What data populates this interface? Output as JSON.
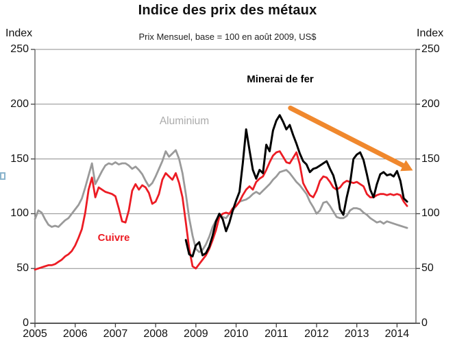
{
  "header": {
    "title": "Indice des prix des métaux",
    "subtitle": "Prix Mensuel, base = 100 en août 2009, US$",
    "axis_label_left": "Index",
    "axis_label_right": "Index"
  },
  "chart_data": {
    "type": "line",
    "title": "Indice des prix des métaux",
    "subtitle": "Prix Mensuel, base = 100 en août 2009, US$",
    "ylabel": "Index",
    "xlabel": "",
    "ylim": [
      0,
      250
    ],
    "xlim": [
      2005,
      2014.47
    ],
    "grid": true,
    "legend_position": "labels-on-chart",
    "y_ticks": [
      0,
      50,
      100,
      150,
      200,
      250
    ],
    "x_ticks": [
      "2005",
      "2006",
      "2007",
      "2008",
      "2009",
      "2010",
      "2011",
      "2012",
      "2013",
      "2014"
    ],
    "frequency": "monthly",
    "series": [
      {
        "name": "Minerai de fer",
        "color": "#000000",
        "start_year": 2008,
        "start_month": 10,
        "values": [
          76,
          63,
          61,
          71,
          74,
          62,
          64,
          70,
          80,
          93,
          100,
          95,
          84,
          92,
          103,
          112,
          120,
          146,
          177,
          158,
          140,
          132,
          140,
          137,
          163,
          157,
          176,
          185,
          190,
          184,
          177,
          181,
          172,
          164,
          155,
          148,
          145,
          138,
          141,
          142,
          144,
          146,
          148,
          141,
          135,
          124,
          104,
          99,
          115,
          128,
          150,
          154,
          156,
          149,
          136,
          122,
          115,
          127,
          136,
          138,
          135,
          136,
          134,
          139,
          130,
          114,
          111
        ]
      },
      {
        "name": "Cuivre",
        "color": "#ec1c24",
        "start_year": 2005,
        "start_month": 1,
        "values": [
          49,
          50,
          51,
          52,
          53,
          53,
          54,
          56,
          58,
          61,
          63,
          66,
          71,
          78,
          86,
          101,
          122,
          133,
          115,
          124,
          122,
          120,
          119,
          118,
          116,
          105,
          93,
          92,
          103,
          121,
          127,
          122,
          126,
          124,
          119,
          109,
          111,
          118,
          131,
          137,
          134,
          131,
          137,
          128,
          115,
          92,
          68,
          52,
          50,
          54,
          58,
          62,
          68,
          76,
          85,
          97,
          100,
          101,
          100,
          105,
          107,
          111,
          117,
          122,
          125,
          122,
          129,
          132,
          134,
          140,
          147,
          153,
          156,
          157,
          152,
          147,
          146,
          151,
          156,
          145,
          128,
          122,
          117,
          115,
          121,
          130,
          134,
          133,
          129,
          124,
          122,
          124,
          128,
          130,
          129,
          128,
          129,
          127,
          125,
          118,
          115,
          115,
          117,
          118,
          118,
          117,
          118,
          117,
          118,
          117,
          111,
          107
        ]
      },
      {
        "name": "Aluminium",
        "color": "#9a9a9a",
        "start_year": 2005,
        "start_month": 1,
        "values": [
          95,
          103,
          101,
          95,
          90,
          88,
          89,
          88,
          91,
          94,
          96,
          100,
          104,
          108,
          114,
          124,
          135,
          146,
          127,
          133,
          139,
          144,
          146,
          145,
          147,
          145,
          146,
          146,
          144,
          141,
          143,
          140,
          136,
          130,
          125,
          128,
          134,
          141,
          148,
          157,
          152,
          155,
          158,
          150,
          137,
          118,
          96,
          80,
          68,
          65,
          67,
          72,
          79,
          88,
          94,
          99,
          97,
          96,
          100,
          103,
          107,
          111,
          112,
          113,
          115,
          118,
          120,
          118,
          121,
          124,
          127,
          131,
          134,
          138,
          139,
          140,
          137,
          133,
          129,
          126,
          122,
          118,
          111,
          106,
          100,
          103,
          110,
          111,
          107,
          102,
          97,
          96,
          96,
          98,
          103,
          105,
          105,
          104,
          101,
          99,
          96,
          94,
          92,
          93,
          91,
          93,
          92,
          91,
          90,
          89,
          88,
          87
        ]
      }
    ],
    "annotations": {
      "arrow": {
        "color": "#f0882d",
        "from": [
          2011.35,
          196.5
        ],
        "to": [
          2014.15,
          144
        ]
      },
      "labels": [
        {
          "text": "Minerai de fer"
        },
        {
          "text": "Aluminium"
        },
        {
          "text": "Cuivre"
        }
      ]
    }
  }
}
